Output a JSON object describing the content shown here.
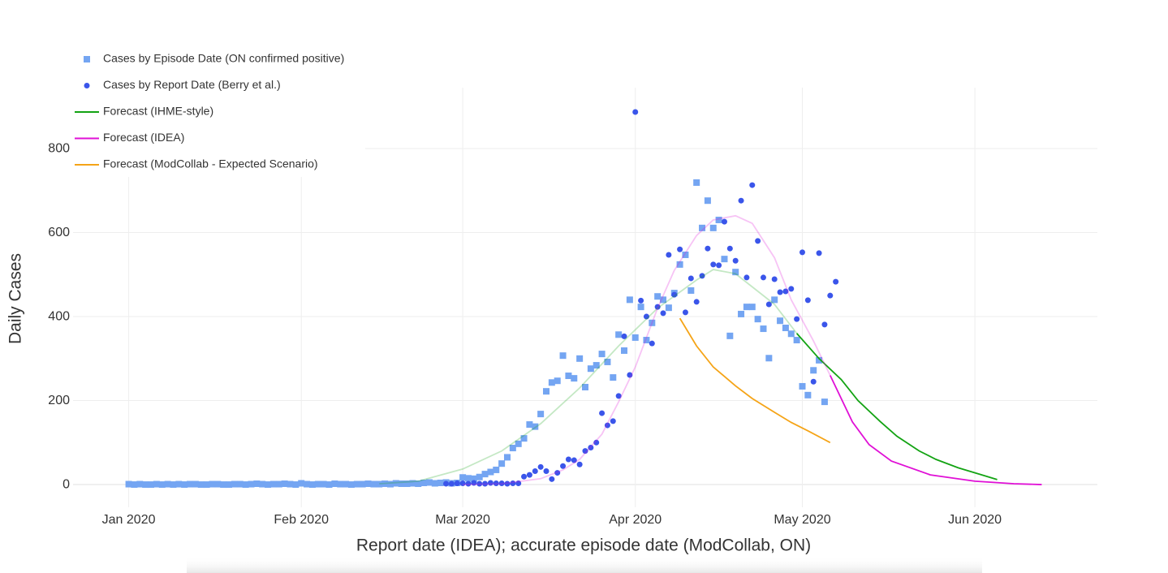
{
  "chart_data": {
    "type": "scatter-line",
    "x_label": "Report date (IDEA); accurate episode date (ModCollab, ON)",
    "y_label": "Daily Cases",
    "xlim": [
      "2019-12-22",
      "2020-06-23"
    ],
    "xticks": [
      {
        "value": "2020-01-01",
        "label": "Jan 2020"
      },
      {
        "value": "2020-02-01",
        "label": "Feb 2020"
      },
      {
        "value": "2020-03-01",
        "label": "Mar 2020"
      },
      {
        "value": "2020-04-01",
        "label": "Apr 2020"
      },
      {
        "value": "2020-05-01",
        "label": "May 2020"
      },
      {
        "value": "2020-06-01",
        "label": "Jun 2020"
      }
    ],
    "ylim": [
      -54,
      945
    ],
    "yticks": [
      0,
      200,
      400,
      600,
      800
    ],
    "grid": true,
    "legend": "top-left",
    "series": [
      {
        "name": "Cases by Episode Date (ON confirmed positive)",
        "color": "#74a5f2",
        "marker": "square",
        "x": [
          "2020-01-01",
          "2020-01-02",
          "2020-01-03",
          "2020-01-04",
          "2020-01-05",
          "2020-01-06",
          "2020-01-07",
          "2020-01-08",
          "2020-01-09",
          "2020-01-10",
          "2020-01-11",
          "2020-01-12",
          "2020-01-13",
          "2020-01-14",
          "2020-01-15",
          "2020-01-16",
          "2020-01-17",
          "2020-01-18",
          "2020-01-19",
          "2020-01-20",
          "2020-01-21",
          "2020-01-22",
          "2020-01-23",
          "2020-01-24",
          "2020-01-25",
          "2020-01-26",
          "2020-01-27",
          "2020-01-28",
          "2020-01-29",
          "2020-01-30",
          "2020-01-31",
          "2020-02-01",
          "2020-02-02",
          "2020-02-03",
          "2020-02-04",
          "2020-02-05",
          "2020-02-06",
          "2020-02-07",
          "2020-02-08",
          "2020-02-09",
          "2020-02-10",
          "2020-02-11",
          "2020-02-12",
          "2020-02-13",
          "2020-02-14",
          "2020-02-15",
          "2020-02-16",
          "2020-02-17",
          "2020-02-18",
          "2020-02-19",
          "2020-02-20",
          "2020-02-21",
          "2020-02-22",
          "2020-02-23",
          "2020-02-24",
          "2020-02-25",
          "2020-02-26",
          "2020-02-27",
          "2020-02-28",
          "2020-02-29",
          "2020-03-01",
          "2020-03-02",
          "2020-03-03",
          "2020-03-04",
          "2020-03-05",
          "2020-03-06",
          "2020-03-07",
          "2020-03-08",
          "2020-03-09",
          "2020-03-10",
          "2020-03-11",
          "2020-03-12",
          "2020-03-13",
          "2020-03-14",
          "2020-03-15",
          "2020-03-16",
          "2020-03-17",
          "2020-03-18",
          "2020-03-19",
          "2020-03-20",
          "2020-03-21",
          "2020-03-22",
          "2020-03-23",
          "2020-03-24",
          "2020-03-25",
          "2020-03-26",
          "2020-03-27",
          "2020-03-28",
          "2020-03-29",
          "2020-03-30",
          "2020-03-31",
          "2020-04-01",
          "2020-04-02",
          "2020-04-03",
          "2020-04-04",
          "2020-04-05",
          "2020-04-06",
          "2020-04-07",
          "2020-04-08",
          "2020-04-09",
          "2020-04-10",
          "2020-04-11",
          "2020-04-12",
          "2020-04-13",
          "2020-04-14",
          "2020-04-15",
          "2020-04-16",
          "2020-04-17",
          "2020-04-18",
          "2020-04-19",
          "2020-04-20",
          "2020-04-21",
          "2020-04-22",
          "2020-04-23",
          "2020-04-24",
          "2020-04-25",
          "2020-04-26",
          "2020-04-27",
          "2020-04-28",
          "2020-04-29",
          "2020-04-30",
          "2020-05-01",
          "2020-05-02",
          "2020-05-03",
          "2020-05-04",
          "2020-05-05"
        ],
        "values": [
          1,
          0,
          1,
          0,
          0,
          1,
          0,
          1,
          0,
          1,
          0,
          1,
          1,
          0,
          0,
          1,
          1,
          0,
          0,
          1,
          1,
          0,
          1,
          2,
          1,
          0,
          1,
          1,
          2,
          1,
          0,
          3,
          1,
          0,
          1,
          1,
          0,
          2,
          1,
          1,
          0,
          1,
          1,
          2,
          1,
          1,
          2,
          1,
          3,
          2,
          2,
          3,
          2,
          4,
          5,
          3,
          4,
          5,
          3,
          4,
          17,
          15,
          14,
          18,
          25,
          30,
          35,
          50,
          65,
          87,
          97,
          110,
          143,
          138,
          168,
          222,
          243,
          247,
          307,
          259,
          253,
          300,
          232,
          276,
          284,
          311,
          292,
          255,
          357,
          319,
          440,
          350,
          423,
          344,
          385,
          448,
          440,
          421,
          456,
          524,
          547,
          462,
          719,
          611,
          676,
          611,
          630,
          537,
          354,
          506,
          406,
          423,
          423,
          394,
          371,
          301,
          440,
          390,
          373,
          359,
          344,
          234,
          213,
          272,
          296,
          197
        ]
      },
      {
        "name": "Cases by Report Date (Berry et al.)",
        "color": "#3a55ea",
        "marker": "circle",
        "x": [
          "2020-02-27",
          "2020-02-28",
          "2020-02-29",
          "2020-03-01",
          "2020-03-02",
          "2020-03-03",
          "2020-03-04",
          "2020-03-05",
          "2020-03-06",
          "2020-03-07",
          "2020-03-08",
          "2020-03-09",
          "2020-03-10",
          "2020-03-11",
          "2020-03-12",
          "2020-03-13",
          "2020-03-14",
          "2020-03-15",
          "2020-03-16",
          "2020-03-17",
          "2020-03-18",
          "2020-03-19",
          "2020-03-20",
          "2020-03-21",
          "2020-03-22",
          "2020-03-23",
          "2020-03-24",
          "2020-03-25",
          "2020-03-26",
          "2020-03-27",
          "2020-03-28",
          "2020-03-29",
          "2020-03-30",
          "2020-03-31",
          "2020-04-01",
          "2020-04-02",
          "2020-04-03",
          "2020-04-04",
          "2020-04-05",
          "2020-04-06",
          "2020-04-07",
          "2020-04-08",
          "2020-04-09",
          "2020-04-10",
          "2020-04-11",
          "2020-04-12",
          "2020-04-13",
          "2020-04-14",
          "2020-04-15",
          "2020-04-16",
          "2020-04-17",
          "2020-04-18",
          "2020-04-19",
          "2020-04-20",
          "2020-04-21",
          "2020-04-22",
          "2020-04-23",
          "2020-04-24",
          "2020-04-25",
          "2020-04-26",
          "2020-04-27",
          "2020-04-28",
          "2020-04-29",
          "2020-04-30",
          "2020-05-01",
          "2020-05-02",
          "2020-05-03",
          "2020-05-04",
          "2020-05-05",
          "2020-05-06",
          "2020-05-07"
        ],
        "values": [
          2,
          2,
          3,
          3,
          2,
          4,
          2,
          2,
          4,
          3,
          3,
          2,
          3,
          3,
          19,
          23,
          32,
          42,
          32,
          13,
          28,
          44,
          60,
          58,
          48,
          80,
          88,
          100,
          170,
          141,
          151,
          211,
          353,
          261,
          887,
          438,
          400,
          336,
          423,
          408,
          547,
          452,
          560,
          410,
          491,
          435,
          497,
          562,
          524,
          522,
          626,
          562,
          533,
          676,
          493,
          713,
          580,
          493,
          429,
          489,
          458,
          460,
          466,
          394,
          553,
          439,
          245,
          551,
          381,
          450,
          483
        ]
      },
      {
        "name": "Forecast (IHME-style)",
        "color": "#13a313",
        "marker": "line",
        "history_x": [
          "2020-02-15",
          "2020-02-22",
          "2020-03-01",
          "2020-03-08",
          "2020-03-15",
          "2020-03-22",
          "2020-03-29",
          "2020-04-05",
          "2020-04-12",
          "2020-04-15",
          "2020-04-19",
          "2020-04-26",
          "2020-04-30"
        ],
        "history_values": [
          2,
          8,
          37,
          80,
          145,
          230,
          330,
          420,
          487,
          512,
          502,
          429,
          360
        ],
        "x": [
          "2020-04-30",
          "2020-05-04",
          "2020-05-08",
          "2020-05-11",
          "2020-05-15",
          "2020-05-18",
          "2020-05-22",
          "2020-05-25",
          "2020-05-29",
          "2020-06-02",
          "2020-06-05"
        ],
        "values": [
          360,
          300,
          250,
          200,
          150,
          115,
          80,
          60,
          40,
          24,
          12
        ]
      },
      {
        "name": "Forecast (IDEA)",
        "color": "#e010d6",
        "marker": "line",
        "history_x": [
          "2020-03-01",
          "2020-03-08",
          "2020-03-15",
          "2020-03-19",
          "2020-03-22",
          "2020-03-26",
          "2020-03-29",
          "2020-04-01",
          "2020-04-05",
          "2020-04-08",
          "2020-04-12",
          "2020-04-15",
          "2020-04-19",
          "2020-04-22",
          "2020-04-26",
          "2020-04-29",
          "2020-05-03",
          "2020-05-06"
        ],
        "history_values": [
          0,
          2,
          14,
          35,
          60,
          120,
          197,
          280,
          420,
          510,
          593,
          630,
          640,
          622,
          540,
          440,
          342,
          260
        ],
        "x": [
          "2020-05-06",
          "2020-05-10",
          "2020-05-13",
          "2020-05-17",
          "2020-05-24",
          "2020-06-01",
          "2020-06-08",
          "2020-06-13"
        ],
        "values": [
          260,
          149,
          95,
          56,
          23,
          8,
          2,
          0
        ]
      },
      {
        "name": "Forecast (ModCollab - Expected Scenario)",
        "color": "#f5a417",
        "marker": "line",
        "x": [
          "2020-04-09",
          "2020-04-12",
          "2020-04-15",
          "2020-04-19",
          "2020-04-22",
          "2020-04-26",
          "2020-04-29",
          "2020-05-02",
          "2020-05-06"
        ],
        "values": [
          396,
          330,
          280,
          235,
          205,
          172,
          148,
          128,
          100
        ]
      }
    ]
  }
}
